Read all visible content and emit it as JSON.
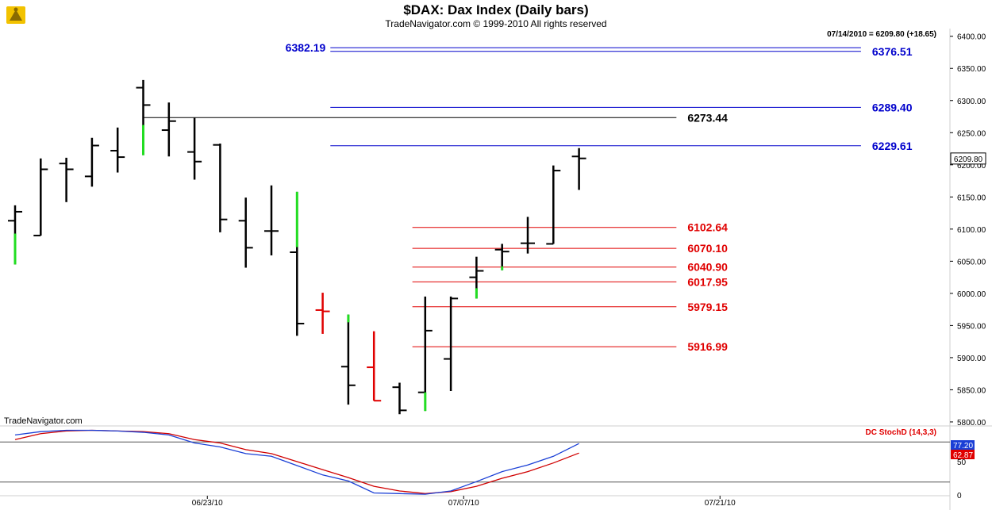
{
  "header": {
    "title": "$DAX:  Dax Index  (Daily bars)",
    "subtitle": "TradeNavigator.com © 1999-2010 All rights reserved",
    "quote": "07/14/2010 = 6209.80 (+18.65)",
    "watermark": "TradeNavigator.com"
  },
  "chart_data": {
    "type": "ohlc",
    "y_ticks": [
      "6400.00",
      "6350.00",
      "6300.00",
      "6250.00",
      "6200.00",
      "6150.00",
      "6100.00",
      "6050.00",
      "6000.00",
      "5950.00",
      "5900.00",
      "5850.00",
      "5800.00"
    ],
    "ylim": [
      5795,
      6412
    ],
    "x_ticks": [
      {
        "label": "06/23/10",
        "index": 7.5
      },
      {
        "label": "07/07/10",
        "index": 17.5
      },
      {
        "label": "07/21/10",
        "index": 27.5
      }
    ],
    "last_price_label": "6209.80",
    "bars": [
      {
        "o": 6113,
        "h": 6137,
        "l": 6045,
        "c": 6127,
        "color": "#000000"
      },
      {
        "o": 6090,
        "h": 6210,
        "l": 6090,
        "c": 6193,
        "color": "#000000"
      },
      {
        "o": 6202,
        "h": 6211,
        "l": 6142,
        "c": 6193,
        "color": "#000000"
      },
      {
        "o": 6182,
        "h": 6242,
        "l": 6166,
        "c": 6230,
        "color": "#000000"
      },
      {
        "o": 6222,
        "h": 6258,
        "l": 6188,
        "c": 6212,
        "color": "#000000"
      },
      {
        "o": 6320,
        "h": 6332,
        "l": 6215,
        "c": 6293,
        "color": "#000000"
      },
      {
        "o": 6254,
        "h": 6297,
        "l": 6213,
        "c": 6268,
        "color": "#000000"
      },
      {
        "o": 6220,
        "h": 6273,
        "l": 6177,
        "c": 6205,
        "color": "#000000"
      },
      {
        "o": 6231,
        "h": 6233,
        "l": 6095,
        "c": 6115,
        "color": "#000000"
      },
      {
        "o": 6113,
        "h": 6149,
        "l": 6040,
        "c": 6071,
        "color": "#000000"
      },
      {
        "o": 6097,
        "h": 6168,
        "l": 6059,
        "c": 6097,
        "color": "#000000"
      },
      {
        "o": 6064,
        "h": 6158,
        "l": 5934,
        "c": 5953,
        "color": "#000000"
      },
      {
        "o": 5974,
        "h": 6001,
        "l": 5937,
        "c": 5972,
        "color": "#e00000"
      },
      {
        "o": 5886,
        "h": 5967,
        "l": 5827,
        "c": 5857,
        "color": "#000000"
      },
      {
        "o": 5885,
        "h": 5941,
        "l": 5833,
        "c": 5833,
        "color": "#e00000"
      },
      {
        "o": 5854,
        "h": 5861,
        "l": 5812,
        "c": 5818,
        "color": "#000000"
      },
      {
        "o": 5846,
        "h": 5995,
        "l": 5817,
        "c": 5942,
        "color": "#000000"
      },
      {
        "o": 5898,
        "h": 5995,
        "l": 5848,
        "c": 5992,
        "color": "#000000"
      },
      {
        "o": 6025,
        "h": 6057,
        "l": 5992,
        "c": 6035,
        "color": "#000000"
      },
      {
        "o": 6068,
        "h": 6077,
        "l": 6036,
        "c": 6065,
        "color": "#000000"
      },
      {
        "o": 6078,
        "h": 6119,
        "l": 6062,
        "c": 6078,
        "color": "#000000"
      },
      {
        "o": 6077,
        "h": 6199,
        "l": 6077,
        "c": 6191,
        "color": "#000000"
      },
      {
        "o": 6213,
        "h": 6226,
        "l": 6161,
        "c": 6210,
        "color": "#000000"
      }
    ],
    "green_segments": [
      {
        "index": 0,
        "from": 6045,
        "to": 6093
      },
      {
        "index": 5,
        "from": 6215,
        "to": 6262
      },
      {
        "index": 11,
        "from": 6072,
        "to": 6158
      },
      {
        "index": 13,
        "from": 5955,
        "to": 5967
      },
      {
        "index": 16,
        "from": 5817,
        "to": 5846
      },
      {
        "index": 18,
        "from": 5992,
        "to": 6008
      },
      {
        "index": 19,
        "from": 6036,
        "to": 6042
      }
    ],
    "levels": [
      {
        "price": 6382.19,
        "label": "6382.19",
        "color": "#0000cc",
        "from": 12.3,
        "to": 33,
        "label_side": "left"
      },
      {
        "price": 6376.51,
        "label": "6376.51",
        "color": "#0000cc",
        "from": 12.3,
        "to": 33,
        "label_side": "right"
      },
      {
        "price": 6289.4,
        "label": "6289.40",
        "color": "#0000cc",
        "from": 12.3,
        "to": 33,
        "label_side": "right"
      },
      {
        "price": 6273.44,
        "label": "6273.44",
        "color": "#000000",
        "from": 5.0,
        "to": 25.8,
        "label_side": "right"
      },
      {
        "price": 6229.61,
        "label": "6229.61",
        "color": "#0000cc",
        "from": 12.3,
        "to": 33,
        "label_side": "right"
      },
      {
        "price": 6102.64,
        "label": "6102.64",
        "color": "#e00000",
        "from": 15.5,
        "to": 25.8,
        "label_side": "right"
      },
      {
        "price": 6070.1,
        "label": "6070.10",
        "color": "#e00000",
        "from": 15.5,
        "to": 25.8,
        "label_side": "right"
      },
      {
        "price": 6040.9,
        "label": "6040.90",
        "color": "#e00000",
        "from": 15.5,
        "to": 25.8,
        "label_side": "right"
      },
      {
        "price": 6017.95,
        "label": "6017.95",
        "color": "#e00000",
        "from": 15.5,
        "to": 25.8,
        "label_side": "right"
      },
      {
        "price": 5979.15,
        "label": "5979.15",
        "color": "#e00000",
        "from": 15.5,
        "to": 25.8,
        "label_side": "right"
      },
      {
        "price": 5916.99,
        "label": "5916.99",
        "color": "#e00000",
        "from": 15.5,
        "to": 25.8,
        "label_side": "right"
      }
    ],
    "indicator": {
      "name": "DC StochD (14,3,3)",
      "ylim": [
        0,
        100
      ],
      "ticks": [
        "50",
        "0"
      ],
      "ref_lines": [
        80,
        20
      ],
      "k_label": "77.20",
      "d_label": "62.87",
      "k": [
        90,
        95,
        97,
        97,
        96,
        94,
        90,
        78,
        72,
        62,
        58,
        44,
        30,
        21,
        3,
        2,
        1,
        6,
        20,
        35,
        45,
        58,
        77.2
      ],
      "d": [
        83,
        92,
        96,
        97,
        96,
        95,
        92,
        83,
        78,
        68,
        62,
        50,
        38,
        26,
        13,
        6,
        2,
        5,
        13,
        25,
        35,
        48,
        62.87
      ]
    }
  }
}
